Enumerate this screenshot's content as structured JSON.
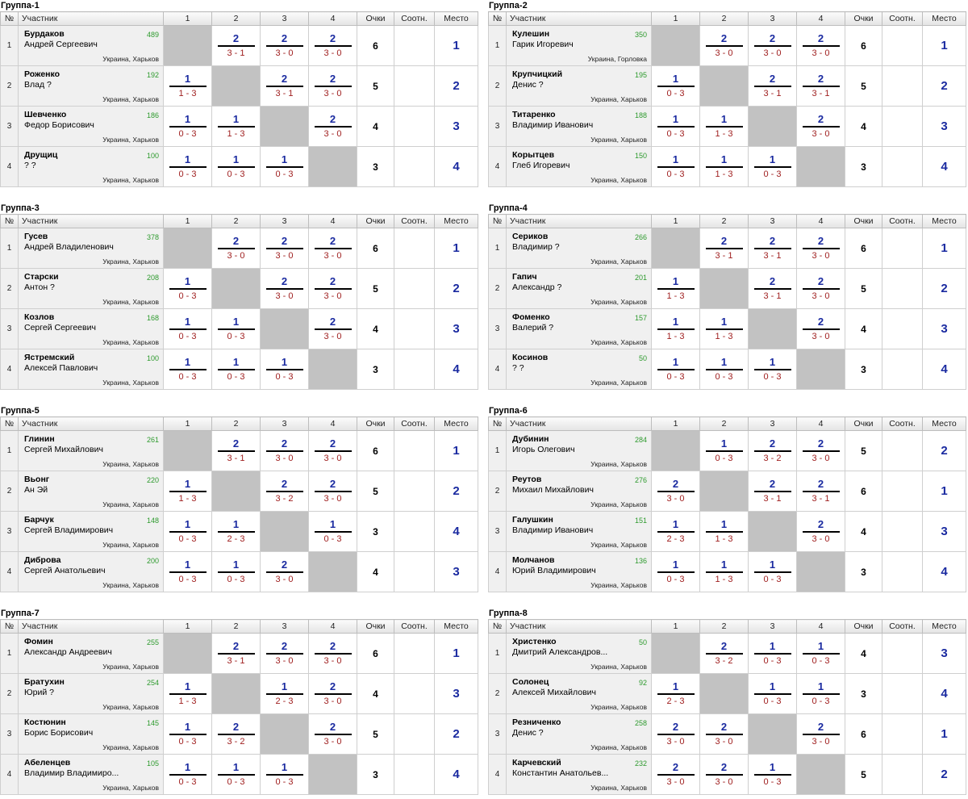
{
  "headers": {
    "no": "№",
    "player": "Участник",
    "c1": "1",
    "c2": "2",
    "c3": "3",
    "c4": "4",
    "points": "Очки",
    "ratio": "Соотн.",
    "place": "Место"
  },
  "groups": [
    {
      "title": "Группа-1",
      "rows": [
        {
          "n": "1",
          "surname": "Бурдаков",
          "name": "Андрей Сергеевич",
          "rating": "489",
          "city": "Украина, Харьков",
          "results": [
            null,
            {
              "t": "2",
              "b": "3 - 1"
            },
            {
              "t": "2",
              "b": "3 - 0"
            },
            {
              "t": "2",
              "b": "3 - 0"
            }
          ],
          "points": "6",
          "place": "1"
        },
        {
          "n": "2",
          "surname": "Роженко",
          "name": "Влад ?",
          "rating": "192",
          "city": "Украина, Харьков",
          "results": [
            {
              "t": "1",
              "b": "1 - 3"
            },
            null,
            {
              "t": "2",
              "b": "3 - 1"
            },
            {
              "t": "2",
              "b": "3 - 0"
            }
          ],
          "points": "5",
          "place": "2"
        },
        {
          "n": "3",
          "surname": "Шевченко",
          "name": "Федор Борисович",
          "rating": "186",
          "city": "Украина, Харьков",
          "results": [
            {
              "t": "1",
              "b": "0 - 3"
            },
            {
              "t": "1",
              "b": "1 - 3"
            },
            null,
            {
              "t": "2",
              "b": "3 - 0"
            }
          ],
          "points": "4",
          "place": "3"
        },
        {
          "n": "4",
          "surname": "Друщиц",
          "name": "? ?",
          "rating": "100",
          "city": "Украина, Харьков",
          "results": [
            {
              "t": "1",
              "b": "0 - 3"
            },
            {
              "t": "1",
              "b": "0 - 3"
            },
            {
              "t": "1",
              "b": "0 - 3"
            },
            null
          ],
          "points": "3",
          "place": "4"
        }
      ]
    },
    {
      "title": "Группа-2",
      "rows": [
        {
          "n": "1",
          "surname": "Кулешин",
          "name": "Гарик Игоревич",
          "rating": "350",
          "city": "Украина, Горловка",
          "results": [
            null,
            {
              "t": "2",
              "b": "3 - 0"
            },
            {
              "t": "2",
              "b": "3 - 0"
            },
            {
              "t": "2",
              "b": "3 - 0"
            }
          ],
          "points": "6",
          "place": "1"
        },
        {
          "n": "2",
          "surname": "Крупчицкий",
          "name": "Денис ?",
          "rating": "195",
          "city": "Украина, Харьков",
          "results": [
            {
              "t": "1",
              "b": "0 - 3"
            },
            null,
            {
              "t": "2",
              "b": "3 - 1"
            },
            {
              "t": "2",
              "b": "3 - 1"
            }
          ],
          "points": "5",
          "place": "2"
        },
        {
          "n": "3",
          "surname": "Титаренко",
          "name": "Владимир Иванович",
          "rating": "188",
          "city": "Украина, Харьков",
          "results": [
            {
              "t": "1",
              "b": "0 - 3"
            },
            {
              "t": "1",
              "b": "1 - 3"
            },
            null,
            {
              "t": "2",
              "b": "3 - 0"
            }
          ],
          "points": "4",
          "place": "3"
        },
        {
          "n": "4",
          "surname": "Корытцев",
          "name": "Глеб Игоревич",
          "rating": "150",
          "city": "Украина, Харьков",
          "results": [
            {
              "t": "1",
              "b": "0 - 3"
            },
            {
              "t": "1",
              "b": "1 - 3"
            },
            {
              "t": "1",
              "b": "0 - 3"
            },
            null
          ],
          "points": "3",
          "place": "4"
        }
      ]
    },
    {
      "title": "Группа-3",
      "rows": [
        {
          "n": "1",
          "surname": "Гусев",
          "name": "Андрей Владиленович",
          "rating": "378",
          "city": "Украина, Харьков",
          "results": [
            null,
            {
              "t": "2",
              "b": "3 - 0"
            },
            {
              "t": "2",
              "b": "3 - 0"
            },
            {
              "t": "2",
              "b": "3 - 0"
            }
          ],
          "points": "6",
          "place": "1"
        },
        {
          "n": "2",
          "surname": "Старски",
          "name": "Антон ?",
          "rating": "208",
          "city": "Украина, Харьков",
          "results": [
            {
              "t": "1",
              "b": "0 - 3"
            },
            null,
            {
              "t": "2",
              "b": "3 - 0"
            },
            {
              "t": "2",
              "b": "3 - 0"
            }
          ],
          "points": "5",
          "place": "2"
        },
        {
          "n": "3",
          "surname": "Козлов",
          "name": "Сергей Сергеевич",
          "rating": "168",
          "city": "Украина, Харьков",
          "results": [
            {
              "t": "1",
              "b": "0 - 3"
            },
            {
              "t": "1",
              "b": "0 - 3"
            },
            null,
            {
              "t": "2",
              "b": "3 - 0"
            }
          ],
          "points": "4",
          "place": "3"
        },
        {
          "n": "4",
          "surname": "Ястремский",
          "name": "Алексей Павлович",
          "rating": "100",
          "city": "Украина, Харьков",
          "results": [
            {
              "t": "1",
              "b": "0 - 3"
            },
            {
              "t": "1",
              "b": "0 - 3"
            },
            {
              "t": "1",
              "b": "0 - 3"
            },
            null
          ],
          "points": "3",
          "place": "4"
        }
      ]
    },
    {
      "title": "Группа-4",
      "rows": [
        {
          "n": "1",
          "surname": "Сериков",
          "name": "Владимир ?",
          "rating": "266",
          "city": "Украина, Харьков",
          "results": [
            null,
            {
              "t": "2",
              "b": "3 - 1"
            },
            {
              "t": "2",
              "b": "3 - 1"
            },
            {
              "t": "2",
              "b": "3 - 0"
            }
          ],
          "points": "6",
          "place": "1"
        },
        {
          "n": "2",
          "surname": "Гапич",
          "name": "Александр ?",
          "rating": "201",
          "city": "Украина, Харьков",
          "results": [
            {
              "t": "1",
              "b": "1 - 3"
            },
            null,
            {
              "t": "2",
              "b": "3 - 1"
            },
            {
              "t": "2",
              "b": "3 - 0"
            }
          ],
          "points": "5",
          "place": "2"
        },
        {
          "n": "3",
          "surname": "Фоменко",
          "name": "Валерий ?",
          "rating": "157",
          "city": "Украина, Харьков",
          "results": [
            {
              "t": "1",
              "b": "1 - 3"
            },
            {
              "t": "1",
              "b": "1 - 3"
            },
            null,
            {
              "t": "2",
              "b": "3 - 0"
            }
          ],
          "points": "4",
          "place": "3"
        },
        {
          "n": "4",
          "surname": "Косинов",
          "name": "? ?",
          "rating": "50",
          "city": "Украина, Харьков",
          "results": [
            {
              "t": "1",
              "b": "0 - 3"
            },
            {
              "t": "1",
              "b": "0 - 3"
            },
            {
              "t": "1",
              "b": "0 - 3"
            },
            null
          ],
          "points": "3",
          "place": "4"
        }
      ]
    },
    {
      "title": "Группа-5",
      "rows": [
        {
          "n": "1",
          "surname": "Глинин",
          "name": "Сергей Михайлович",
          "rating": "261",
          "city": "Украина, Харьков",
          "results": [
            null,
            {
              "t": "2",
              "b": "3 - 1"
            },
            {
              "t": "2",
              "b": "3 - 0"
            },
            {
              "t": "2",
              "b": "3 - 0"
            }
          ],
          "points": "6",
          "place": "1"
        },
        {
          "n": "2",
          "surname": "Вьонг",
          "name": "Ан Эй",
          "rating": "220",
          "city": "Украина, Харьков",
          "results": [
            {
              "t": "1",
              "b": "1 - 3"
            },
            null,
            {
              "t": "2",
              "b": "3 - 2"
            },
            {
              "t": "2",
              "b": "3 - 0"
            }
          ],
          "points": "5",
          "place": "2"
        },
        {
          "n": "3",
          "surname": "Барчук",
          "name": "Сергей Владимирович",
          "rating": "148",
          "city": "Украина, Харьков",
          "results": [
            {
              "t": "1",
              "b": "0 - 3"
            },
            {
              "t": "1",
              "b": "2 - 3"
            },
            null,
            {
              "t": "1",
              "b": "0 - 3"
            }
          ],
          "points": "3",
          "place": "4"
        },
        {
          "n": "4",
          "surname": "Диброва",
          "name": "Сергей Анатольевич",
          "rating": "200",
          "city": "Украина, Харьков",
          "results": [
            {
              "t": "1",
              "b": "0 - 3"
            },
            {
              "t": "1",
              "b": "0 - 3"
            },
            {
              "t": "2",
              "b": "3 - 0"
            },
            null
          ],
          "points": "4",
          "place": "3"
        }
      ]
    },
    {
      "title": "Группа-6",
      "rows": [
        {
          "n": "1",
          "surname": "Дубинин",
          "name": "Игорь Олегович",
          "rating": "284",
          "city": "Украина, Харьков",
          "results": [
            null,
            {
              "t": "1",
              "b": "0 - 3"
            },
            {
              "t": "2",
              "b": "3 - 2"
            },
            {
              "t": "2",
              "b": "3 - 0"
            }
          ],
          "points": "5",
          "place": "2"
        },
        {
          "n": "2",
          "surname": "Реутов",
          "name": "Михаил Михайлович",
          "rating": "276",
          "city": "Украина, Харьков",
          "results": [
            {
              "t": "2",
              "b": "3 - 0"
            },
            null,
            {
              "t": "2",
              "b": "3 - 1"
            },
            {
              "t": "2",
              "b": "3 - 1"
            }
          ],
          "points": "6",
          "place": "1"
        },
        {
          "n": "3",
          "surname": "Галушкин",
          "name": "Владимир Иванович",
          "rating": "151",
          "city": "Украина, Харьков",
          "results": [
            {
              "t": "1",
              "b": "2 - 3"
            },
            {
              "t": "1",
              "b": "1 - 3"
            },
            null,
            {
              "t": "2",
              "b": "3 - 0"
            }
          ],
          "points": "4",
          "place": "3"
        },
        {
          "n": "4",
          "surname": "Молчанов",
          "name": "Юрий Владимирович",
          "rating": "136",
          "city": "Украина, Харьков",
          "results": [
            {
              "t": "1",
              "b": "0 - 3"
            },
            {
              "t": "1",
              "b": "1 - 3"
            },
            {
              "t": "1",
              "b": "0 - 3"
            },
            null
          ],
          "points": "3",
          "place": "4"
        }
      ]
    },
    {
      "title": "Группа-7",
      "rows": [
        {
          "n": "1",
          "surname": "Фомин",
          "name": "Александр Андреевич",
          "rating": "255",
          "city": "Украина, Харьков",
          "results": [
            null,
            {
              "t": "2",
              "b": "3 - 1"
            },
            {
              "t": "2",
              "b": "3 - 0"
            },
            {
              "t": "2",
              "b": "3 - 0"
            }
          ],
          "points": "6",
          "place": "1"
        },
        {
          "n": "2",
          "surname": "Братухин",
          "name": "Юрий ?",
          "rating": "254",
          "city": "Украина, Харьков",
          "results": [
            {
              "t": "1",
              "b": "1 - 3"
            },
            null,
            {
              "t": "1",
              "b": "2 - 3"
            },
            {
              "t": "2",
              "b": "3 - 0"
            }
          ],
          "points": "4",
          "place": "3"
        },
        {
          "n": "3",
          "surname": "Костюнин",
          "name": "Борис Борисович",
          "rating": "145",
          "city": "Украина, Харьков",
          "results": [
            {
              "t": "1",
              "b": "0 - 3"
            },
            {
              "t": "2",
              "b": "3 - 2"
            },
            null,
            {
              "t": "2",
              "b": "3 - 0"
            }
          ],
          "points": "5",
          "place": "2"
        },
        {
          "n": "4",
          "surname": "Абеленцев",
          "name": "Владимир Владимиро...",
          "rating": "105",
          "city": "Украина, Харьков",
          "results": [
            {
              "t": "1",
              "b": "0 - 3"
            },
            {
              "t": "1",
              "b": "0 - 3"
            },
            {
              "t": "1",
              "b": "0 - 3"
            },
            null
          ],
          "points": "3",
          "place": "4"
        }
      ]
    },
    {
      "title": "Группа-8",
      "rows": [
        {
          "n": "1",
          "surname": "Христенко",
          "name": "Дмитрий Александров...",
          "rating": "50",
          "city": "Украина, Харьков",
          "results": [
            null,
            {
              "t": "2",
              "b": "3 - 2"
            },
            {
              "t": "1",
              "b": "0 - 3"
            },
            {
              "t": "1",
              "b": "0 - 3"
            }
          ],
          "points": "4",
          "place": "3"
        },
        {
          "n": "2",
          "surname": "Солонец",
          "name": "Алексей Михайлович",
          "rating": "92",
          "city": "Украина, Харьков",
          "results": [
            {
              "t": "1",
              "b": "2 - 3"
            },
            null,
            {
              "t": "1",
              "b": "0 - 3"
            },
            {
              "t": "1",
              "b": "0 - 3"
            }
          ],
          "points": "3",
          "place": "4"
        },
        {
          "n": "3",
          "surname": "Резниченко",
          "name": "Денис ?",
          "rating": "258",
          "city": "Украина, Харьков",
          "results": [
            {
              "t": "2",
              "b": "3 - 0"
            },
            {
              "t": "2",
              "b": "3 - 0"
            },
            null,
            {
              "t": "2",
              "b": "3 - 0"
            }
          ],
          "points": "6",
          "place": "1"
        },
        {
          "n": "4",
          "surname": "Карчевский",
          "name": "Константин Анатольев...",
          "rating": "232",
          "city": "Украина, Харьков",
          "results": [
            {
              "t": "2",
              "b": "3 - 0"
            },
            {
              "t": "2",
              "b": "3 - 0"
            },
            {
              "t": "1",
              "b": "0 - 3"
            },
            null
          ],
          "points": "5",
          "place": "2"
        }
      ]
    }
  ]
}
